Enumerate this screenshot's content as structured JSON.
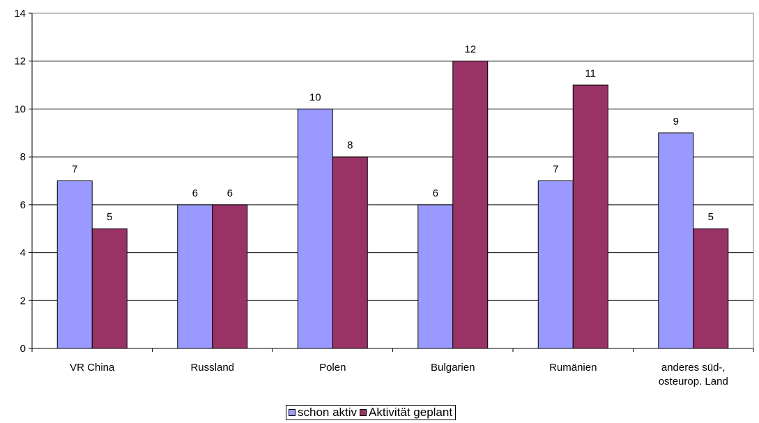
{
  "chart_data": {
    "type": "bar",
    "categories": [
      [
        "VR China"
      ],
      [
        "Russland"
      ],
      [
        "Polen"
      ],
      [
        "Bulgarien"
      ],
      [
        "Rumänien"
      ],
      [
        "anderes süd-,",
        "osteurop. Land"
      ]
    ],
    "series": [
      {
        "name": "schon aktiv",
        "color": "#9999ff",
        "values": [
          7,
          6,
          10,
          6,
          7,
          9
        ]
      },
      {
        "name": "Aktivität geplant",
        "color": "#993366",
        "values": [
          5,
          6,
          8,
          12,
          11,
          5
        ]
      }
    ],
    "ylim": [
      0,
      14
    ],
    "yticks": [
      0,
      2,
      4,
      6,
      8,
      10,
      12,
      14
    ],
    "data_labels": true,
    "grid": true,
    "legend_position": "bottom"
  }
}
